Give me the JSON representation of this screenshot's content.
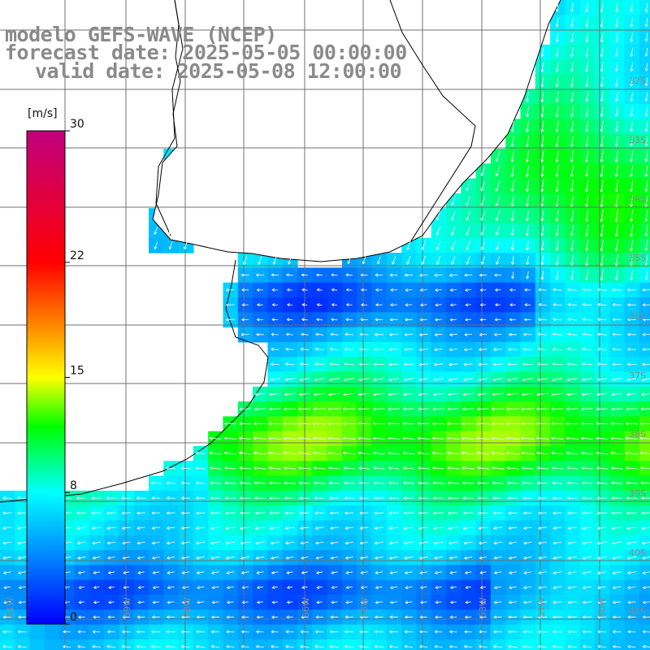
{
  "title": {
    "line1": "modelo GEFS-WAVE (NCEP)",
    "line2": "forecast date: 2025-05-05 00:00:00",
    "line3": "valid date: 2025-05-08 12:00:00"
  },
  "colorbar": {
    "units": "[m/s]",
    "ticks": [
      {
        "value": 30,
        "label": "30"
      },
      {
        "value": 22,
        "label": "22"
      },
      {
        "value": 15,
        "label": "15"
      },
      {
        "value": 8,
        "label": "8"
      },
      {
        "value": 0,
        "label": "0"
      }
    ],
    "colors": [
      "#0000ff",
      "#00a0ff",
      "#00ffff",
      "#00ff00",
      "#ffff00",
      "#ff8000",
      "#ff0000",
      "#c0007f"
    ]
  },
  "map": {
    "lat_labels": [
      "32S",
      "33S",
      "34S",
      "35S",
      "36S",
      "37S",
      "38S",
      "39S",
      "40S",
      "41S"
    ],
    "lon_labels": [
      "61W",
      "59W",
      "58W",
      "56W",
      "55W",
      "53W",
      "51W",
      "50W"
    ],
    "background_color": "#ffffff",
    "coastline_color": "#000000",
    "grid_color": "#777777"
  }
}
